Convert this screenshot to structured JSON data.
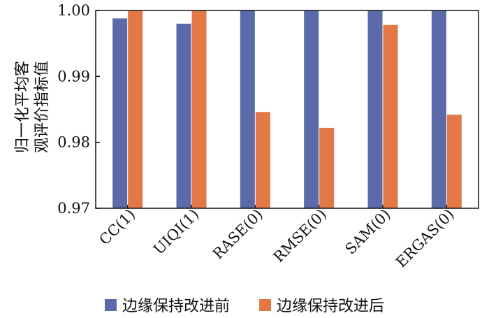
{
  "chart_data": {
    "type": "bar",
    "title": "",
    "xlabel": "",
    "ylabel_lines": [
      "归一化平均客",
      "观评价指标值"
    ],
    "ylim": [
      0.97,
      1.0
    ],
    "yticks": [
      "0.97",
      "0.98",
      "0.99",
      "1.00"
    ],
    "categories": [
      "CC(1)",
      "UIQI(1)",
      "RASE(0)",
      "RMSE(0)",
      "SAM(0)",
      "ERGAS(0)"
    ],
    "series": [
      {
        "name": "边缘保持改进前",
        "color": "#5b6aa8",
        "values": [
          0.9988,
          0.998,
          1.0,
          1.0,
          1.0,
          1.0
        ]
      },
      {
        "name": "边缘保持改进后",
        "color": "#e27846",
        "values": [
          1.0,
          1.0,
          0.9846,
          0.9822,
          0.9978,
          0.9842
        ]
      }
    ],
    "legend_position": "bottom",
    "grid": false
  }
}
